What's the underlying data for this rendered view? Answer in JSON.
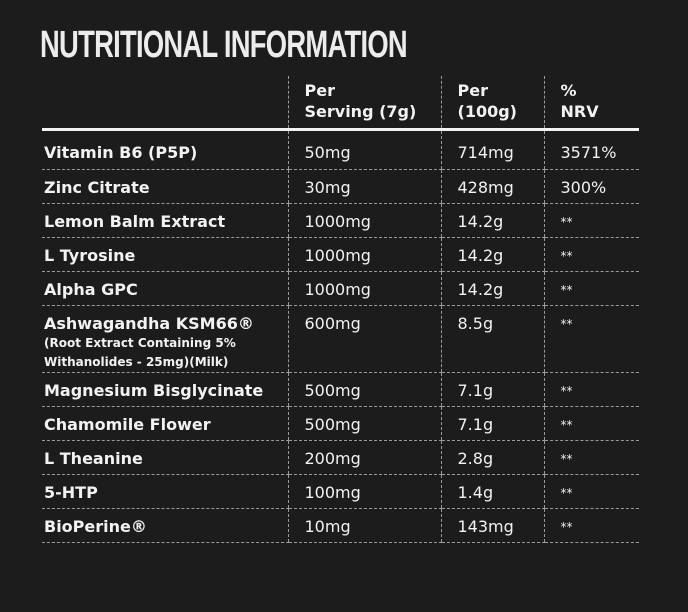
{
  "title": "NUTRITIONAL INFORMATION",
  "headers": [
    "",
    "Per\nServing (7g)",
    "Per\n(100g)",
    "%\nNRV"
  ],
  "header_lines": [
    [
      "Per",
      "Serving (7g)"
    ],
    [
      "Per",
      "(100g)"
    ],
    [
      "%",
      "NRV"
    ]
  ],
  "rows": [
    {
      "name": "Vitamin B6 (P5P)",
      "sub": "",
      "serving": "50mg",
      "per100": "714mg",
      "nrv": "3571%"
    },
    {
      "name": "Zinc Citrate",
      "sub": "",
      "serving": "30mg",
      "per100": "428mg",
      "nrv": "300%"
    },
    {
      "name": "Lemon Balm Extract",
      "sub": "",
      "serving": "1000mg",
      "per100": "14.2g",
      "nrv": "**"
    },
    {
      "name": "L Tyrosine",
      "sub": "",
      "serving": "1000mg",
      "per100": "14.2g",
      "nrv": "**"
    },
    {
      "name": "Alpha GPC",
      "sub": "",
      "serving": "1000mg",
      "per100": "14.2g",
      "nrv": "**"
    },
    {
      "name": "Ashwagandha KSM66®",
      "sub": "(Root Extract Containing 5% Withanolides - 25mg)(Milk)",
      "serving": "600mg",
      "per100": "8.5g",
      "nrv": "**"
    },
    {
      "name": "Magnesium Bisglycinate",
      "sub": "",
      "serving": "500mg",
      "per100": "7.1g",
      "nrv": "**"
    },
    {
      "name": "Chamomile Flower",
      "sub": "",
      "serving": "500mg",
      "per100": "7.1g",
      "nrv": "**"
    },
    {
      "name": "L Theanine",
      "sub": "",
      "serving": "200mg",
      "per100": "2.8g",
      "nrv": "**"
    },
    {
      "name": "5-HTP",
      "sub": "",
      "serving": "100mg",
      "per100": "1.4g",
      "nrv": "**"
    },
    {
      "name": "BioPerine®",
      "sub": "",
      "serving": "10mg",
      "per100": "143mg",
      "nrv": "**"
    }
  ]
}
